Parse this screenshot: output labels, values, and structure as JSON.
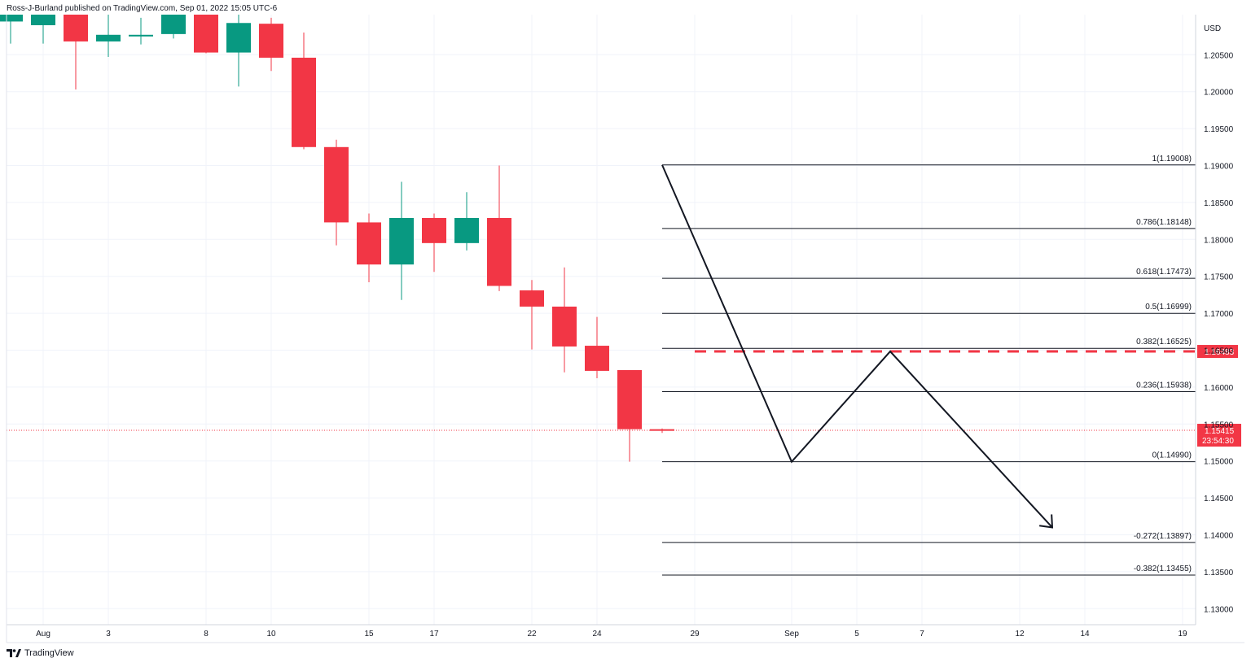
{
  "publisher": "Ross-J-Burland published on TradingView.com, Sep 01, 2022 15:05 UTC-6",
  "branding": {
    "logo_text": "TradingView"
  },
  "colors": {
    "up": "#089981",
    "down": "#f23645",
    "grid": "#f0f3fa",
    "fib_line": "#131722",
    "current_price_line": "#f23645",
    "arrow": "#131722"
  },
  "chart_data": {
    "type": "candlestick",
    "currency": "USD",
    "ylim": [
      1.1275,
      1.2125
    ],
    "yticks": [
      "1.20500",
      "1.20000",
      "1.19500",
      "1.19000",
      "1.18500",
      "1.18000",
      "1.17500",
      "1.17000",
      "1.16500",
      "1.16000",
      "1.15500",
      "1.15000",
      "1.14500",
      "1.14000",
      "1.13500",
      "1.13000"
    ],
    "xticks": [
      "Aug",
      "3",
      "8",
      "10",
      "15",
      "17",
      "22",
      "24",
      "29",
      "Sep",
      "5",
      "7",
      "12",
      "14",
      "19"
    ],
    "candles": [
      {
        "o": 1.2095,
        "h": 1.211,
        "l": 1.2065,
        "c": 1.2105
      },
      {
        "o": 1.209,
        "h": 1.211,
        "l": 1.2065,
        "c": 1.211
      },
      {
        "o": 1.2105,
        "h": 1.211,
        "l": 1.2003,
        "c": 1.2068
      },
      {
        "o": 1.2068,
        "h": 1.2115,
        "l": 1.2047,
        "c": 1.2077
      },
      {
        "o": 1.2075,
        "h": 1.21,
        "l": 1.2064,
        "c": 1.2077
      },
      {
        "o": 1.2078,
        "h": 1.2115,
        "l": 1.2072,
        "c": 1.2105
      },
      {
        "o": 1.2105,
        "h": 1.211,
        "l": 1.2052,
        "c": 1.2053
      },
      {
        "o": 1.2053,
        "h": 1.2105,
        "l": 1.2007,
        "c": 1.2093
      },
      {
        "o": 1.2092,
        "h": 1.21,
        "l": 1.2028,
        "c": 1.2046
      },
      {
        "o": 1.2046,
        "h": 1.208,
        "l": 1.1922,
        "c": 1.1925
      },
      {
        "o": 1.1925,
        "h": 1.1935,
        "l": 1.1792,
        "c": 1.1823
      },
      {
        "o": 1.1823,
        "h": 1.1835,
        "l": 1.1742,
        "c": 1.1766
      },
      {
        "o": 1.1766,
        "h": 1.1878,
        "l": 1.1718,
        "c": 1.1829
      },
      {
        "o": 1.1829,
        "h": 1.1835,
        "l": 1.1756,
        "c": 1.1795
      },
      {
        "o": 1.1795,
        "h": 1.1864,
        "l": 1.1785,
        "c": 1.1829
      },
      {
        "o": 1.1829,
        "h": 1.19,
        "l": 1.173,
        "c": 1.1737
      },
      {
        "o": 1.1731,
        "h": 1.1745,
        "l": 1.1651,
        "c": 1.1709
      },
      {
        "o": 1.1709,
        "h": 1.1762,
        "l": 1.162,
        "c": 1.1655
      },
      {
        "o": 1.1656,
        "h": 1.1695,
        "l": 1.1612,
        "c": 1.1622
      },
      {
        "o": 1.1623,
        "h": 1.1623,
        "l": 1.1499,
        "c": 1.1543
      },
      {
        "o": 1.1543,
        "h": 1.1544,
        "l": 1.1538,
        "c": 1.1542
      }
    ],
    "fib_levels": [
      {
        "label": "1(1.19008)",
        "value": 1.19008
      },
      {
        "label": "0.786(1.18148)",
        "value": 1.18148
      },
      {
        "label": "0.618(1.17473)",
        "value": 1.17473
      },
      {
        "label": "0.5(1.16999)",
        "value": 1.16999
      },
      {
        "label": "0.382(1.16525)",
        "value": 1.16525
      },
      {
        "label": "0.236(1.15938)",
        "value": 1.15938
      },
      {
        "label": "0(1.14990)",
        "value": 1.1499
      },
      {
        "label": "-0.272(1.13897)",
        "value": 1.13897
      },
      {
        "label": "-0.382(1.13455)",
        "value": 1.13455
      }
    ],
    "resistance_level": {
      "value": 1.16483,
      "label": "1.16483"
    },
    "current_price": {
      "value": 1.15415,
      "label": "1.15415",
      "countdown": "23:54:30"
    },
    "projection_path": [
      {
        "date": "Aug 26",
        "price": 1.19008
      },
      {
        "date": "Sep 1",
        "price": 1.1499
      },
      {
        "date": "Sep 6",
        "price": 1.16483
      },
      {
        "date": "Sep 13",
        "price": 1.141
      }
    ]
  }
}
